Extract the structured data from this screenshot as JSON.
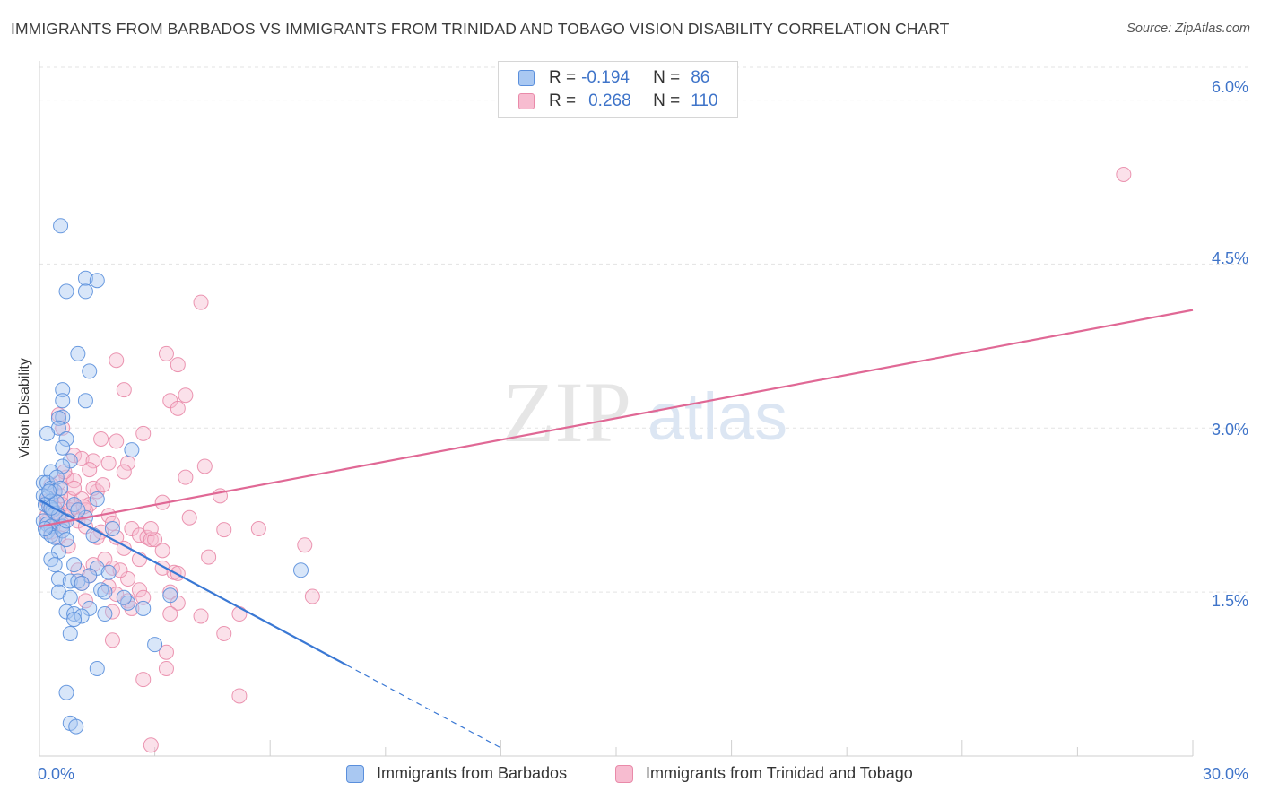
{
  "title": "IMMIGRANTS FROM BARBADOS VS IMMIGRANTS FROM TRINIDAD AND TOBAGO VISION DISABILITY CORRELATION CHART",
  "source": "Source: ZipAtlas.com",
  "watermark": {
    "zip": "ZIP",
    "atlas": "atlas"
  },
  "legend": {
    "rows": [
      {
        "r_label": "R =",
        "r_value": "-0.194",
        "n_label": "N =",
        "n_value": "86"
      },
      {
        "r_label": "R =",
        "r_value": "0.268",
        "n_label": "N =",
        "n_value": "110"
      }
    ]
  },
  "colors": {
    "barbados_fill": "#a9c8f2",
    "barbados_stroke": "#5a8fdc",
    "barbados_line": "#3a78d4",
    "trinidad_fill": "#f7bcd0",
    "trinidad_stroke": "#e98aa9",
    "trinidad_line": "#e06895",
    "tick_text": "#3f74c9",
    "grid": "#e3e3e3"
  },
  "chart_data": {
    "type": "scatter",
    "xlabel": "",
    "ylabel": "Vision Disability",
    "xlim": [
      0,
      30
    ],
    "ylim": [
      0,
      6.3
    ],
    "x_tick_labels": [
      "0.0%",
      "30.0%"
    ],
    "y_ticks": [
      1.5,
      3.0,
      4.5,
      6.0
    ],
    "y_tick_labels": [
      "1.5%",
      "3.0%",
      "4.5%",
      "6.0%"
    ],
    "grid": true,
    "series": [
      {
        "name": "Immigrants from Barbados",
        "trend": {
          "x0": 0.0,
          "y0": 2.34,
          "x1": 8.0,
          "y1": 0.83,
          "dash_to_x": 12.0
        },
        "points": [
          [
            0.55,
            4.85
          ],
          [
            1.2,
            4.37
          ],
          [
            1.2,
            4.25
          ],
          [
            0.7,
            4.25
          ],
          [
            1.5,
            4.35
          ],
          [
            1.0,
            3.68
          ],
          [
            1.3,
            3.52
          ],
          [
            0.6,
            3.35
          ],
          [
            0.6,
            3.25
          ],
          [
            1.2,
            3.25
          ],
          [
            0.6,
            3.1
          ],
          [
            0.5,
            3.09
          ],
          [
            0.5,
            3.0
          ],
          [
            0.2,
            2.95
          ],
          [
            0.7,
            2.9
          ],
          [
            2.4,
            2.8
          ],
          [
            0.6,
            2.82
          ],
          [
            0.8,
            2.7
          ],
          [
            0.6,
            2.65
          ],
          [
            0.3,
            2.6
          ],
          [
            0.1,
            2.5
          ],
          [
            0.2,
            2.5
          ],
          [
            0.3,
            2.45
          ],
          [
            0.4,
            2.42
          ],
          [
            0.1,
            2.38
          ],
          [
            0.2,
            2.36
          ],
          [
            0.3,
            2.33
          ],
          [
            0.15,
            2.3
          ],
          [
            0.25,
            2.28
          ],
          [
            0.35,
            2.25
          ],
          [
            0.4,
            2.22
          ],
          [
            0.5,
            2.2
          ],
          [
            0.1,
            2.15
          ],
          [
            0.2,
            2.12
          ],
          [
            0.3,
            2.1
          ],
          [
            0.6,
            2.1
          ],
          [
            1.5,
            2.35
          ],
          [
            0.2,
            2.05
          ],
          [
            0.3,
            2.02
          ],
          [
            0.4,
            2.0
          ],
          [
            0.15,
            2.08
          ],
          [
            0.6,
            2.06
          ],
          [
            0.5,
            1.87
          ],
          [
            0.3,
            1.8
          ],
          [
            0.4,
            1.75
          ],
          [
            0.9,
            1.75
          ],
          [
            1.5,
            1.72
          ],
          [
            1.3,
            1.65
          ],
          [
            0.5,
            1.62
          ],
          [
            0.8,
            1.6
          ],
          [
            1.0,
            1.6
          ],
          [
            1.1,
            1.58
          ],
          [
            0.5,
            1.5
          ],
          [
            0.8,
            1.45
          ],
          [
            1.6,
            1.52
          ],
          [
            1.7,
            1.5
          ],
          [
            2.3,
            1.4
          ],
          [
            2.2,
            1.45
          ],
          [
            2.7,
            1.35
          ],
          [
            1.3,
            1.35
          ],
          [
            0.7,
            1.32
          ],
          [
            0.9,
            1.3
          ],
          [
            1.1,
            1.28
          ],
          [
            1.7,
            1.3
          ],
          [
            0.9,
            1.25
          ],
          [
            0.8,
            1.12
          ],
          [
            1.5,
            0.8
          ],
          [
            3.0,
            1.02
          ],
          [
            0.7,
            0.58
          ],
          [
            0.8,
            0.3
          ],
          [
            0.95,
            0.27
          ],
          [
            6.8,
            1.7
          ],
          [
            3.4,
            1.47
          ],
          [
            1.9,
            2.08
          ],
          [
            1.2,
            2.18
          ],
          [
            1.4,
            2.02
          ],
          [
            0.45,
            2.55
          ],
          [
            0.55,
            2.45
          ],
          [
            0.9,
            2.3
          ],
          [
            0.7,
            2.15
          ],
          [
            1.0,
            2.25
          ],
          [
            0.3,
            2.27
          ],
          [
            0.45,
            2.32
          ],
          [
            0.25,
            2.42
          ],
          [
            1.8,
            1.68
          ],
          [
            0.7,
            1.98
          ]
        ]
      },
      {
        "name": "Immigrants from Trinidad and Tobago",
        "trend": {
          "x0": 0.0,
          "y0": 2.1,
          "x1": 30.0,
          "y1": 4.08
        },
        "points": [
          [
            28.2,
            5.32
          ],
          [
            4.2,
            4.15
          ],
          [
            2.0,
            3.62
          ],
          [
            3.3,
            3.68
          ],
          [
            3.6,
            3.58
          ],
          [
            2.2,
            3.35
          ],
          [
            3.8,
            3.3
          ],
          [
            3.4,
            3.25
          ],
          [
            3.6,
            3.18
          ],
          [
            0.5,
            3.12
          ],
          [
            0.6,
            3.0
          ],
          [
            2.7,
            2.95
          ],
          [
            1.6,
            2.9
          ],
          [
            2.0,
            2.88
          ],
          [
            0.9,
            2.75
          ],
          [
            1.1,
            2.72
          ],
          [
            1.4,
            2.7
          ],
          [
            1.8,
            2.68
          ],
          [
            2.3,
            2.68
          ],
          [
            4.3,
            2.65
          ],
          [
            1.3,
            2.62
          ],
          [
            2.2,
            2.6
          ],
          [
            3.8,
            2.55
          ],
          [
            0.7,
            2.55
          ],
          [
            0.9,
            2.52
          ],
          [
            0.5,
            2.5
          ],
          [
            0.3,
            2.48
          ],
          [
            1.5,
            2.42
          ],
          [
            0.4,
            2.42
          ],
          [
            4.7,
            2.38
          ],
          [
            0.8,
            2.35
          ],
          [
            1.1,
            2.35
          ],
          [
            0.2,
            2.33
          ],
          [
            1.3,
            2.3
          ],
          [
            3.2,
            2.32
          ],
          [
            0.6,
            2.3
          ],
          [
            0.9,
            2.28
          ],
          [
            1.2,
            2.25
          ],
          [
            0.3,
            2.25
          ],
          [
            0.5,
            2.22
          ],
          [
            0.7,
            2.2
          ],
          [
            1.8,
            2.2
          ],
          [
            0.4,
            2.2
          ],
          [
            3.9,
            2.18
          ],
          [
            0.2,
            2.15
          ],
          [
            1.0,
            2.15
          ],
          [
            1.9,
            2.13
          ],
          [
            0.6,
            2.12
          ],
          [
            1.2,
            2.1
          ],
          [
            2.4,
            2.08
          ],
          [
            5.7,
            2.08
          ],
          [
            4.8,
            2.07
          ],
          [
            0.3,
            2.05
          ],
          [
            1.6,
            2.05
          ],
          [
            2.6,
            2.02
          ],
          [
            2.0,
            2.0
          ],
          [
            2.8,
            2.0
          ],
          [
            2.9,
            1.98
          ],
          [
            3.0,
            1.98
          ],
          [
            1.5,
            2.0
          ],
          [
            6.9,
            1.93
          ],
          [
            2.2,
            1.9
          ],
          [
            3.2,
            1.88
          ],
          [
            4.4,
            1.82
          ],
          [
            1.7,
            1.8
          ],
          [
            2.6,
            1.8
          ],
          [
            1.4,
            1.75
          ],
          [
            3.2,
            1.72
          ],
          [
            1.9,
            1.72
          ],
          [
            1.0,
            1.7
          ],
          [
            3.5,
            1.68
          ],
          [
            3.6,
            1.67
          ],
          [
            1.3,
            1.65
          ],
          [
            2.3,
            1.62
          ],
          [
            1.1,
            1.58
          ],
          [
            1.8,
            1.55
          ],
          [
            2.6,
            1.52
          ],
          [
            3.4,
            1.5
          ],
          [
            2.0,
            1.48
          ],
          [
            7.1,
            1.46
          ],
          [
            2.7,
            1.45
          ],
          [
            1.2,
            1.42
          ],
          [
            2.3,
            1.42
          ],
          [
            3.6,
            1.4
          ],
          [
            2.4,
            1.35
          ],
          [
            1.9,
            1.32
          ],
          [
            3.4,
            1.3
          ],
          [
            4.2,
            1.28
          ],
          [
            5.2,
            1.3
          ],
          [
            0.5,
            2.0
          ],
          [
            0.4,
            2.27
          ],
          [
            0.2,
            2.2
          ],
          [
            0.8,
            2.25
          ],
          [
            1.4,
            2.45
          ],
          [
            0.65,
            2.6
          ],
          [
            1.65,
            2.48
          ],
          [
            2.1,
            1.7
          ],
          [
            2.9,
            2.08
          ],
          [
            4.8,
            1.12
          ],
          [
            1.9,
            1.06
          ],
          [
            3.3,
            0.95
          ],
          [
            3.3,
            0.8
          ],
          [
            2.7,
            0.7
          ],
          [
            5.2,
            0.55
          ],
          [
            2.9,
            0.1
          ],
          [
            0.35,
            2.1
          ],
          [
            0.9,
            2.45
          ],
          [
            0.55,
            2.38
          ],
          [
            1.15,
            2.28
          ],
          [
            0.75,
            1.92
          ]
        ]
      }
    ]
  }
}
